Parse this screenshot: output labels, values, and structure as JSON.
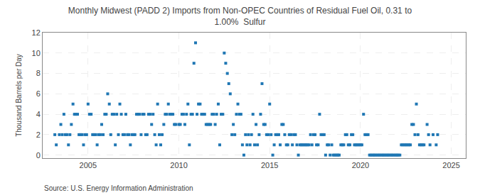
{
  "chart_data": {
    "type": "scatter",
    "title": "Monthly Midwest (PADD 2) Imports from Non-OPEC Countries of Residual Fuel Oil, 0.31 to\n1.00%  Sulfur",
    "ylabel": "Thousand Barrels per Day",
    "annotations": [
      "Source: U.S. Energy Information Administration"
    ],
    "marker": "square",
    "grid": true,
    "xlim": [
      2002.5,
      2025.8
    ],
    "ylim": [
      -0.3,
      12
    ],
    "xticks": [
      2005,
      2010,
      2015,
      2020,
      2025
    ],
    "yticks": [
      0,
      2,
      4,
      6,
      8,
      10,
      12
    ],
    "x": [
      2003.17,
      2003.25,
      2003.42,
      2003.5,
      2003.58,
      2003.67,
      2003.75,
      2003.83,
      2003.92,
      2004.0,
      2004.08,
      2004.17,
      2004.25,
      2004.33,
      2004.42,
      2004.5,
      2004.58,
      2004.67,
      2004.75,
      2004.83,
      2004.92,
      2005.0,
      2005.08,
      2005.17,
      2005.25,
      2005.33,
      2005.42,
      2005.5,
      2005.58,
      2005.67,
      2005.75,
      2005.83,
      2005.92,
      2006.0,
      2006.08,
      2006.17,
      2006.25,
      2006.33,
      2006.42,
      2006.5,
      2006.58,
      2006.67,
      2006.75,
      2006.83,
      2006.92,
      2007.0,
      2007.08,
      2007.17,
      2007.25,
      2007.33,
      2007.42,
      2007.5,
      2007.58,
      2007.67,
      2007.75,
      2007.83,
      2007.92,
      2008.0,
      2008.08,
      2008.17,
      2008.25,
      2008.33,
      2008.42,
      2008.5,
      2008.58,
      2008.67,
      2008.75,
      2008.83,
      2008.92,
      2009.0,
      2009.08,
      2009.17,
      2009.25,
      2009.33,
      2009.42,
      2009.5,
      2009.58,
      2009.67,
      2009.75,
      2009.83,
      2010.0,
      2010.08,
      2010.17,
      2010.25,
      2010.33,
      2010.42,
      2010.5,
      2010.58,
      2010.67,
      2010.75,
      2010.83,
      2010.92,
      2011.0,
      2011.08,
      2011.17,
      2011.25,
      2011.33,
      2011.42,
      2011.5,
      2011.58,
      2011.67,
      2011.75,
      2011.83,
      2011.92,
      2012.0,
      2012.08,
      2012.17,
      2012.25,
      2012.33,
      2012.42,
      2012.5,
      2012.58,
      2012.67,
      2012.75,
      2012.83,
      2012.92,
      2013.0,
      2013.08,
      2013.17,
      2013.25,
      2013.33,
      2013.42,
      2013.5,
      2013.58,
      2013.67,
      2013.75,
      2013.83,
      2013.92,
      2014.0,
      2014.08,
      2014.17,
      2014.25,
      2014.33,
      2014.42,
      2014.5,
      2014.58,
      2014.67,
      2014.75,
      2014.83,
      2014.92,
      2015.0,
      2015.08,
      2015.17,
      2015.25,
      2015.33,
      2015.42,
      2015.5,
      2015.58,
      2015.67,
      2015.75,
      2015.83,
      2015.92,
      2016.0,
      2016.08,
      2016.17,
      2016.25,
      2016.33,
      2016.42,
      2016.5,
      2016.58,
      2016.67,
      2016.75,
      2016.83,
      2016.92,
      2017.0,
      2017.08,
      2017.17,
      2017.25,
      2017.33,
      2017.42,
      2017.5,
      2017.58,
      2017.67,
      2017.75,
      2017.83,
      2017.92,
      2018.0,
      2018.08,
      2018.17,
      2018.25,
      2018.33,
      2018.42,
      2018.5,
      2018.58,
      2018.67,
      2018.75,
      2018.83,
      2018.92,
      2019.0,
      2019.08,
      2019.17,
      2019.25,
      2019.33,
      2019.42,
      2019.5,
      2019.58,
      2019.67,
      2019.75,
      2019.83,
      2019.92,
      2020.0,
      2020.08,
      2020.17,
      2020.25,
      2020.33,
      2020.42,
      2020.5,
      2020.58,
      2020.67,
      2020.75,
      2020.83,
      2020.92,
      2021.0,
      2021.08,
      2021.17,
      2021.25,
      2021.33,
      2021.42,
      2021.5,
      2021.58,
      2021.67,
      2021.75,
      2021.83,
      2021.92,
      2022.0,
      2022.08,
      2022.17,
      2022.25,
      2022.33,
      2022.42,
      2022.5,
      2022.58,
      2022.67,
      2022.75,
      2022.83,
      2022.92,
      2023.0,
      2023.08,
      2023.17,
      2023.25,
      2023.33,
      2023.42,
      2023.5,
      2023.67,
      2023.75,
      2023.83,
      2024.0,
      2024.17,
      2024.25
    ],
    "values": [
      2,
      1,
      2,
      3,
      2,
      4,
      2,
      2,
      1,
      2,
      3,
      5,
      4,
      4,
      4,
      2,
      2,
      2,
      1,
      2,
      2,
      5,
      4,
      4,
      2,
      2,
      2,
      1,
      2,
      2,
      3,
      2,
      4,
      4,
      6,
      5,
      2,
      4,
      4,
      1,
      4,
      2,
      5,
      4,
      2,
      2,
      4,
      2,
      2,
      1,
      2,
      2,
      2,
      4,
      4,
      4,
      2,
      4,
      4,
      2,
      2,
      4,
      4,
      3,
      4,
      2,
      1,
      5,
      2,
      1,
      2,
      3,
      4,
      4,
      5,
      4,
      4,
      4,
      3,
      3,
      3,
      3,
      4,
      4,
      3,
      4,
      5,
      1,
      4,
      4,
      9,
      11,
      4,
      5,
      5,
      4,
      4,
      4,
      3,
      3,
      3,
      3,
      4,
      4,
      3,
      4,
      5,
      1,
      4,
      4,
      10,
      9,
      8,
      7,
      6,
      2,
      3,
      2,
      4,
      5,
      4,
      4,
      1,
      0,
      2,
      1,
      2,
      1,
      2,
      4,
      1,
      3,
      1,
      2,
      4,
      7,
      3,
      3,
      2,
      2,
      5,
      2,
      0,
      1,
      2,
      2,
      2,
      1,
      3,
      3,
      2,
      1,
      1,
      2,
      2,
      1,
      2,
      2,
      1,
      0,
      1,
      1,
      1,
      1,
      1,
      1,
      1,
      2,
      1,
      2,
      2,
      1,
      1,
      4,
      2,
      2,
      2,
      0,
      1,
      1,
      0,
      1,
      0,
      0,
      0,
      0,
      0,
      1,
      1,
      1,
      2,
      2,
      1,
      1,
      2,
      2,
      1,
      1,
      1,
      1,
      1,
      1,
      4,
      2,
      2,
      2,
      0,
      0,
      0,
      0,
      0,
      0,
      0,
      0,
      0,
      0,
      0,
      0,
      0,
      0,
      0,
      0,
      0,
      0,
      0,
      0,
      0,
      1,
      1,
      1,
      1,
      1,
      1,
      1,
      3,
      3,
      2,
      5,
      2,
      1,
      1,
      1,
      1,
      3,
      2,
      1,
      2,
      1,
      2
    ]
  }
}
